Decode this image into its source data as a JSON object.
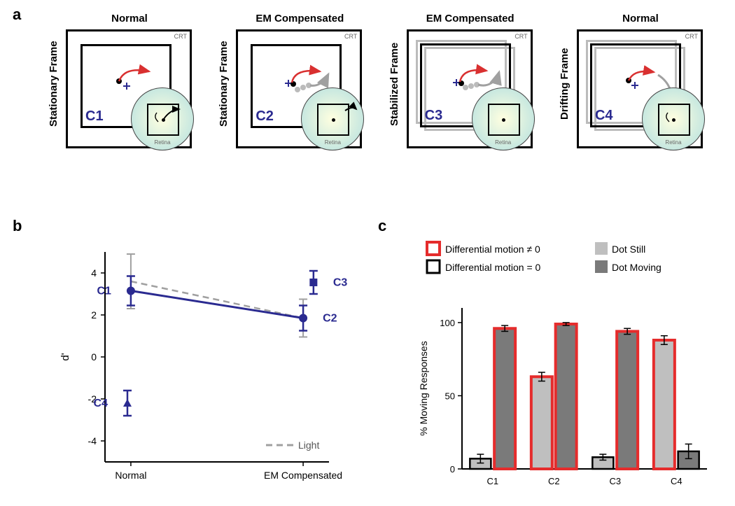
{
  "labels": {
    "a": "a",
    "b": "b",
    "c": "c"
  },
  "panel_a": {
    "conditions": [
      {
        "id": "C1",
        "top": "Normal",
        "side": "Stationary Frame"
      },
      {
        "id": "C2",
        "top": "EM Compensated",
        "side": "Stationary Frame"
      },
      {
        "id": "C3",
        "top": "EM Compensated",
        "side": "Stabilized Frame"
      },
      {
        "id": "C4",
        "top": "Normal",
        "side": "Drifting Frame"
      }
    ],
    "crt_label": "CRT",
    "retina_label": "Retina",
    "colors": {
      "frame": "#000000",
      "ghost": "#bbbbbb",
      "arrow_red": "#d93030",
      "arrow_gray": "#a0a0a0",
      "cross": "#2a2a90",
      "c_label": "#2a2a90",
      "retina_fill1": "#ffffe0",
      "retina_fill2": "#aad4cc"
    }
  },
  "panel_b": {
    "ylabel": "d'",
    "yticks": [
      -4,
      -2,
      0,
      2,
      4
    ],
    "ylim": [
      -5,
      5
    ],
    "xticks": [
      "Normal",
      "EM Compensated"
    ],
    "series": {
      "dark": {
        "color": "#2a2a90",
        "points": {
          "C1": {
            "x": 0,
            "y": 3.15,
            "err": 0.7
          },
          "C2": {
            "x": 1,
            "y": 1.85,
            "err": 0.6
          },
          "C3": {
            "x": 1,
            "y": 3.55,
            "err": 0.55
          },
          "C4": {
            "x": 0,
            "y": -2.2,
            "err": 0.6
          }
        }
      },
      "light": {
        "color": "#a0a0a0",
        "points": {
          "C1": {
            "x": 0,
            "y": 3.6,
            "err": 1.3
          },
          "C2": {
            "x": 1,
            "y": 1.85,
            "err": 0.9
          }
        }
      }
    },
    "legend_light": "Light",
    "font_size_axis": 15,
    "font_size_tick": 14
  },
  "panel_c": {
    "legend": {
      "diff_nonzero": "Differential motion ≠ 0",
      "diff_zero": "Differential motion = 0",
      "still": "Dot Still",
      "moving": "Dot Moving",
      "red_stroke": "#e52c2c",
      "black_stroke": "#000000",
      "light_fill": "#bfbfbf",
      "dark_fill": "#7a7a7a"
    },
    "ylabel": "% Moving Responses",
    "ylim": [
      0,
      110
    ],
    "yticks": [
      0,
      50,
      100
    ],
    "categories": [
      "C1",
      "C2",
      "C3",
      "C4"
    ],
    "bars": {
      "C1": {
        "still": {
          "v": 7,
          "err": 3,
          "diff": "zero"
        },
        "moving": {
          "v": 96,
          "err": 2,
          "diff": "nonzero"
        }
      },
      "C2": {
        "still": {
          "v": 63,
          "err": 3,
          "diff": "nonzero"
        },
        "moving": {
          "v": 99,
          "err": 1,
          "diff": "nonzero"
        }
      },
      "C3": {
        "still": {
          "v": 8,
          "err": 2,
          "diff": "zero"
        },
        "moving": {
          "v": 94,
          "err": 2,
          "diff": "nonzero"
        }
      },
      "C4": {
        "still": {
          "v": 88,
          "err": 3,
          "diff": "nonzero"
        },
        "moving": {
          "v": 12,
          "err": 5,
          "diff": "zero"
        }
      }
    },
    "font_size_axis": 14,
    "font_size_tick": 13
  }
}
